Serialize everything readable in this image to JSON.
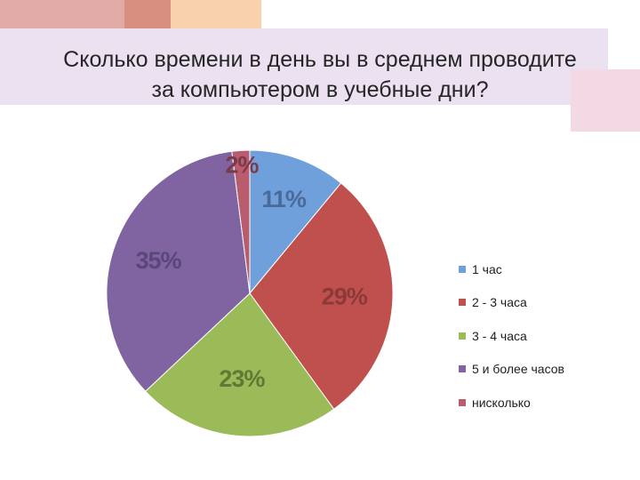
{
  "slide": {
    "title_line1": "Сколько времени в день вы в среднем проводите",
    "title_line2": "за компьютером в учебные дни?"
  },
  "chart_data": {
    "type": "pie",
    "title": "Сколько времени в день вы в среднем проводите за компьютером в учебные дни?",
    "categories": [
      "1 час",
      "2 - 3 часа",
      "3 - 4 часа",
      "5 и более часов",
      "нисколько"
    ],
    "values": [
      11,
      29,
      23,
      35,
      2
    ],
    "labels": [
      "11%",
      "29%",
      "23%",
      "35%",
      "2%"
    ],
    "unit": "%",
    "colors": [
      "#6fa0dc",
      "#c0504d",
      "#9bbb59",
      "#8064a2",
      "#b85c6e"
    ],
    "label_colors": [
      "#4a6a99",
      "#8b3a38",
      "#5e7a34",
      "#5a477a",
      "#7a3a48"
    ],
    "legend_position": "right"
  }
}
